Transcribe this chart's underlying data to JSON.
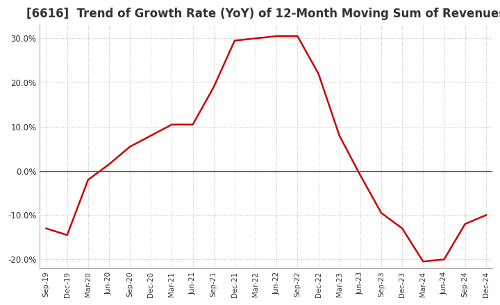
{
  "title": "[6616]  Trend of Growth Rate (YoY) of 12-Month Moving Sum of Revenues",
  "x_labels": [
    "Sep-19",
    "Dec-19",
    "Mar-20",
    "Jun-20",
    "Sep-20",
    "Dec-20",
    "Mar-21",
    "Jun-21",
    "Sep-21",
    "Dec-21",
    "Mar-22",
    "Jun-22",
    "Sep-22",
    "Dec-22",
    "Mar-23",
    "Jun-23",
    "Sep-23",
    "Dec-23",
    "Mar-24",
    "Jun-24",
    "Sep-24",
    "Dec-24"
  ],
  "y_values": [
    -13.0,
    -14.5,
    -2.0,
    1.5,
    5.5,
    8.0,
    10.5,
    10.5,
    19.0,
    29.5,
    30.0,
    30.5,
    30.5,
    22.0,
    8.0,
    -1.0,
    -9.5,
    -13.0,
    -20.5,
    -20.0,
    -12.0,
    -10.0
  ],
  "ylim": [
    -22,
    33
  ],
  "yticks": [
    -20,
    -10,
    0,
    10,
    20,
    30
  ],
  "line_color": "#cc0000",
  "background_color": "#ffffff",
  "grid_color": "#bbbbbb",
  "zero_line_color": "#555555",
  "title_color": "#333333",
  "title_fontsize": 12
}
